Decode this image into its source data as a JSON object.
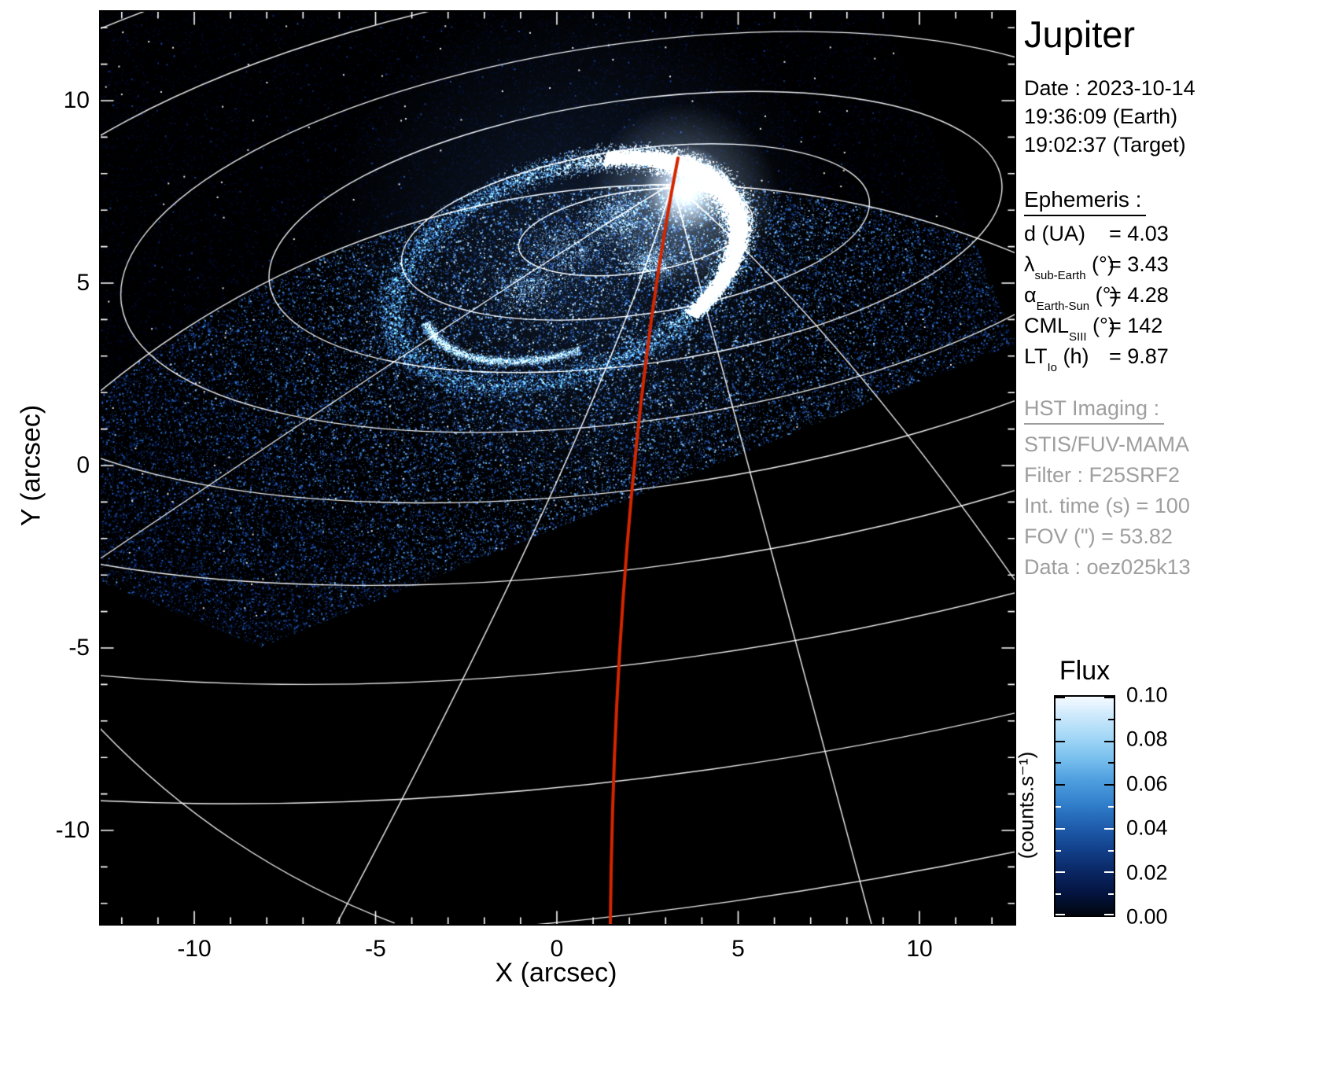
{
  "panel": {
    "title": "Jupiter",
    "date_lines": [
      "Date : 2023-10-14",
      "19:36:09 (Earth)",
      "19:02:37 (Target)"
    ],
    "ephemeris_heading": "Ephemeris :",
    "ephemeris": [
      {
        "symbol": "d",
        "subscript": "",
        "unit": "(UA)",
        "value": "= 4.03"
      },
      {
        "symbol": "λ",
        "subscript": "sub-Earth",
        "unit": "(°)",
        "value": "= 3.43"
      },
      {
        "symbol": "α",
        "subscript": "Earth-Sun",
        "unit": "(°)",
        "value": "= 4.28"
      },
      {
        "symbol": "CML",
        "subscript": "SIII",
        "unit": "(°)",
        "value": "= 142"
      },
      {
        "symbol": "LT",
        "subscript": "Io",
        "unit": "(h)",
        "value": "= 9.87"
      }
    ],
    "hst_heading": "HST Imaging :",
    "hst_lines": [
      "STIS/FUV-MAMA",
      "Filter : F25SRF2",
      "Int. time (s) = 100",
      "FOV (\") = 53.82",
      "Data : oez025k13"
    ]
  },
  "chart_data": {
    "type": "heatmap",
    "title": "Jupiter",
    "xlabel": "X (arcsec)",
    "ylabel": "Y (arcsec)",
    "xlim": [
      -12.6,
      12.6
    ],
    "ylim": [
      -12.6,
      12.5
    ],
    "xticks": [
      -10,
      -5,
      0,
      5,
      10
    ],
    "yticks": [
      -10,
      -5,
      0,
      5,
      10
    ],
    "grid": "white planetary graticule (latitude circles and meridians) over black sky",
    "colorbar": {
      "title": "Flux",
      "unit_label": "(counts.s⁻¹)",
      "min": 0.0,
      "max": 0.1,
      "ticks": [
        0.1,
        0.08,
        0.06,
        0.04,
        0.02,
        0.0
      ]
    },
    "content": "HST STIS/FUV-MAMA far-ultraviolet image of Jupiter's northern aurora: bright white auroral oval near the north pole on a speckled blue disk background; detector field of view appears as a quadrilateral rotated ~22 degrees; a red curve marks the central meridian (CML)",
    "ephemeris_values": {
      "d_UA": 4.03,
      "lambda_subEarth_deg": 3.43,
      "alpha_EarthSun_deg": 4.28,
      "CML_SIII_deg": 142,
      "LT_Io_h": 9.87
    }
  }
}
